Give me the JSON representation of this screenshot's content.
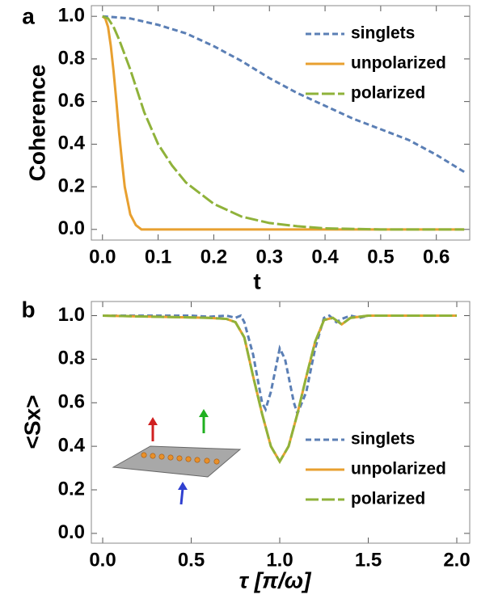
{
  "chart_data": [
    {
      "type": "line",
      "panel_label": "a",
      "x_label": "t",
      "y_label": "Coherence",
      "xlim": [
        -0.02,
        0.66
      ],
      "ylim": [
        -0.05,
        1.05
      ],
      "xticks": [
        {
          "value": 0,
          "label": "0.0"
        },
        0.1,
        0.2,
        0.3,
        0.4,
        0.5,
        0.6
      ],
      "yticks": [
        {
          "value": 0,
          "label": "0.0"
        },
        0.2,
        0.4,
        0.6,
        0.8,
        {
          "value": 1,
          "label": "1.0"
        }
      ],
      "legend": "upper right",
      "series": [
        {
          "name": "singlets",
          "color": "#5b7fb5",
          "style": "dashed",
          "x": [
            0,
            0.05,
            0.1,
            0.15,
            0.2,
            0.25,
            0.3,
            0.35,
            0.4,
            0.45,
            0.5,
            0.55,
            0.6,
            0.65
          ],
          "values": [
            1.0,
            0.99,
            0.96,
            0.92,
            0.86,
            0.79,
            0.71,
            0.64,
            0.58,
            0.52,
            0.47,
            0.42,
            0.35,
            0.27
          ]
        },
        {
          "name": "unpolarized",
          "color": "#e8a030",
          "style": "solid",
          "x": [
            0,
            0.005,
            0.01,
            0.015,
            0.02,
            0.025,
            0.03,
            0.035,
            0.04,
            0.05,
            0.06,
            0.07,
            0.1,
            0.65
          ],
          "values": [
            1.0,
            0.99,
            0.95,
            0.86,
            0.74,
            0.6,
            0.45,
            0.32,
            0.2,
            0.07,
            0.02,
            0.0,
            0.0,
            0.0
          ]
        },
        {
          "name": "polarized",
          "color": "#8fb23a",
          "style": "longdash",
          "x": [
            0,
            0.01,
            0.02,
            0.03,
            0.05,
            0.075,
            0.1,
            0.125,
            0.15,
            0.2,
            0.25,
            0.3,
            0.35,
            0.4,
            0.5,
            0.65
          ],
          "values": [
            1.0,
            0.99,
            0.95,
            0.89,
            0.75,
            0.55,
            0.4,
            0.3,
            0.22,
            0.12,
            0.06,
            0.03,
            0.015,
            0.005,
            0.0,
            0.0
          ]
        }
      ]
    },
    {
      "type": "line",
      "panel_label": "b",
      "x_label": "τ [π/ω]",
      "y_label": "<Sx>",
      "xlim": [
        -0.064,
        2.073
      ],
      "ylim": [
        -0.045,
        1.065
      ],
      "xticks": [
        {
          "value": 0,
          "label": "0.0"
        },
        0.5,
        {
          "value": 1,
          "label": "1.0"
        },
        1.5,
        {
          "value": 2,
          "label": "2.0"
        }
      ],
      "yticks": [
        {
          "value": 0,
          "label": "0.0"
        },
        0.2,
        0.4,
        0.6,
        0.8,
        {
          "value": 1,
          "label": "1.0"
        }
      ],
      "legend": "lower right",
      "series": [
        {
          "name": "singlets",
          "color": "#5b7fb5",
          "style": "dashed",
          "x": [
            0,
            0.5,
            0.6,
            0.7,
            0.75,
            0.78,
            0.8,
            0.85,
            0.9,
            0.92,
            0.95,
            1.0,
            1.03,
            1.08,
            1.1,
            1.15,
            1.2,
            1.25,
            1.28,
            1.32,
            1.35,
            1.4,
            1.45,
            1.5,
            2.0
          ],
          "values": [
            1.0,
            1.0,
            0.995,
            1.0,
            0.99,
            1.0,
            0.97,
            0.82,
            0.6,
            0.57,
            0.65,
            0.85,
            0.8,
            0.6,
            0.55,
            0.65,
            0.85,
            0.99,
            1.0,
            0.97,
            0.985,
            1.0,
            0.99,
            1.0,
            1.0
          ]
        },
        {
          "name": "unpolarized",
          "color": "#e8a030",
          "style": "solid",
          "x": [
            0,
            0.6,
            0.7,
            0.75,
            0.8,
            0.85,
            0.9,
            0.95,
            1.0,
            1.05,
            1.1,
            1.15,
            1.2,
            1.25,
            1.3,
            1.35,
            1.4,
            1.5,
            2.0
          ],
          "values": [
            1.0,
            0.99,
            0.985,
            0.97,
            0.9,
            0.72,
            0.55,
            0.4,
            0.33,
            0.4,
            0.55,
            0.72,
            0.88,
            0.98,
            0.99,
            0.96,
            0.99,
            1.0,
            1.0
          ]
        },
        {
          "name": "polarized",
          "color": "#8fb23a",
          "style": "longdash",
          "x": [
            0,
            0.6,
            0.7,
            0.75,
            0.8,
            0.85,
            0.9,
            0.95,
            1.0,
            1.05,
            1.1,
            1.15,
            1.2,
            1.25,
            1.3,
            1.35,
            1.4,
            1.5,
            2.0
          ],
          "values": [
            1.0,
            0.99,
            0.985,
            0.97,
            0.9,
            0.72,
            0.55,
            0.4,
            0.33,
            0.4,
            0.55,
            0.72,
            0.88,
            0.98,
            0.99,
            0.96,
            0.99,
            1.0,
            1.0
          ]
        }
      ]
    }
  ]
}
